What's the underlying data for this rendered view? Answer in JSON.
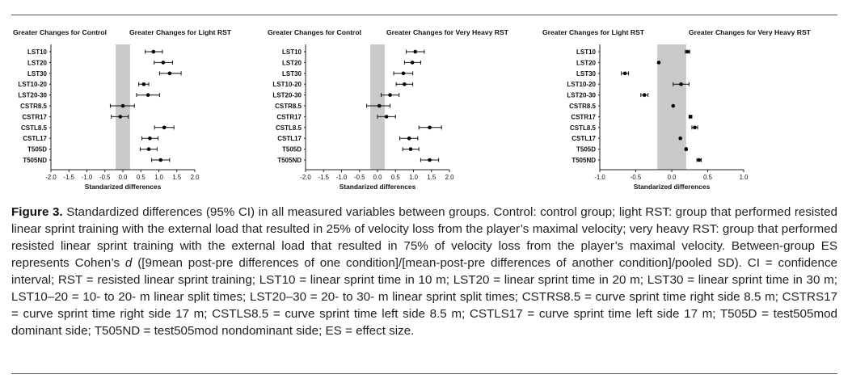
{
  "rows": [
    "LST10",
    "LST20",
    "LST30",
    "LST10-20",
    "LST20-30",
    "CSTR8.5",
    "CSTR17",
    "CSTL8.5",
    "CSTL17",
    "T505D",
    "T505ND"
  ],
  "chart_data": [
    {
      "type": "forest",
      "left_header": "Greater Changes for Control",
      "right_header": "Greater Changes for Light RST",
      "xlabel": "Standarized differences",
      "xlim": [
        -2.0,
        2.0
      ],
      "xticks": [
        "-2.0",
        "-1.5",
        "-1.0",
        "-0.5",
        "0.0",
        "0.5",
        "1.0",
        "1.5",
        "2.0"
      ],
      "band": [
        -0.2,
        0.2
      ],
      "categories": [
        "LST10",
        "LST20",
        "LST30",
        "LST10-20",
        "LST20-30",
        "CSTR8.5",
        "CSTR17",
        "CSTL8.5",
        "CSTL17",
        "T505D",
        "T505ND"
      ],
      "values": [
        0.85,
        1.12,
        1.3,
        0.58,
        0.7,
        0.0,
        -0.07,
        1.15,
        0.75,
        0.72,
        1.05
      ],
      "lower": [
        0.62,
        0.87,
        1.02,
        0.44,
        0.38,
        -0.35,
        -0.32,
        0.88,
        0.53,
        0.48,
        0.8
      ],
      "upper": [
        1.1,
        1.38,
        1.62,
        0.72,
        1.02,
        0.32,
        0.15,
        1.42,
        0.98,
        0.95,
        1.3
      ]
    },
    {
      "type": "forest",
      "left_header": "Greater Changes for Control",
      "right_header": "Greater Changes for Very Heavy RST",
      "xlabel": "Standarized differences",
      "xlim": [
        -2.0,
        2.0
      ],
      "xticks": [
        "-2.0",
        "-1.5",
        "-1.0",
        "-0.5",
        "0.0",
        "0.5",
        "1.0",
        "1.5",
        "2.0"
      ],
      "band": [
        -0.2,
        0.2
      ],
      "categories": [
        "LST10",
        "LST20",
        "LST30",
        "LST10-20",
        "LST20-30",
        "CSTR8.5",
        "CSTR17",
        "CSTL8.5",
        "CSTL17",
        "T505D",
        "T505ND"
      ],
      "values": [
        1.05,
        0.97,
        0.72,
        0.75,
        0.35,
        0.05,
        0.25,
        1.45,
        0.88,
        0.92,
        1.45
      ],
      "lower": [
        0.8,
        0.75,
        0.45,
        0.52,
        0.1,
        -0.3,
        0.0,
        1.15,
        0.62,
        0.7,
        1.2
      ],
      "upper": [
        1.3,
        1.2,
        0.98,
        0.98,
        0.6,
        0.35,
        0.5,
        1.78,
        1.12,
        1.15,
        1.7
      ]
    },
    {
      "type": "forest",
      "left_header": "Greater Changes for Light RST",
      "right_header": "Greater Changes for Very Heavy RST",
      "xlabel": "Standarized differences",
      "xlim": [
        -1.0,
        1.0
      ],
      "xticks": [
        "-1.0",
        "-0.5",
        "0.0",
        "0.5",
        "1.0"
      ],
      "band": [
        -0.2,
        0.2
      ],
      "categories": [
        "LST10",
        "LST20",
        "LST30",
        "LST10-20",
        "LST20-30",
        "CSTR8.5",
        "CSTR17",
        "CSTL8.5",
        "CSTL17",
        "T505D",
        "T505ND"
      ],
      "values": [
        0.22,
        -0.18,
        -0.65,
        0.13,
        -0.38,
        0.02,
        0.26,
        0.32,
        0.12,
        0.2,
        0.38
      ],
      "lower": [
        0.19,
        -0.18,
        -0.7,
        0.02,
        -0.43,
        0.02,
        0.24,
        0.28,
        0.12,
        0.19,
        0.35
      ],
      "upper": [
        0.25,
        -0.18,
        -0.6,
        0.24,
        -0.33,
        0.02,
        0.28,
        0.36,
        0.12,
        0.21,
        0.41
      ]
    }
  ],
  "caption": {
    "label": "Figure 3.",
    "text": " Standardized differences (95% CI) in all measured variables between groups. Control: control group; light RST: group that performed resisted linear sprint training with the external load that resulted in 25% of velocity loss from the player’s maximal velocity; very heavy RST: group that performed resisted linear sprint training with the external load that resulted in 75% of velocity loss from the player’s maximal velocity. Between-group ES represents Cohen’s ",
    "d_symbol": "d",
    "text2": " ([9mean post-pre differences of one condition]/[mean-post-pre differences of another condition]/pooled SD). CI = confidence interval; RST = resisted linear sprint training; LST10 = linear sprint time in 10 m; LST20 = linear sprint time in 20 m; LST30 = linear sprint time in 30 m; LST10–20 = 10- to 20- m linear split times; LST20–30 = 20- to 30- m linear sprint split times; CSTRS8.5 = curve sprint time right side 8.5 m; CSTRS17 = curve sprint time right side 17 m; CSTLS8.5 = curve sprint time left side 8.5 m; CSTLS17 = curve sprint time left side 17 m; T505D = test505mod dominant side; T505ND = test505mod nondominant side; ES = effect size."
  }
}
